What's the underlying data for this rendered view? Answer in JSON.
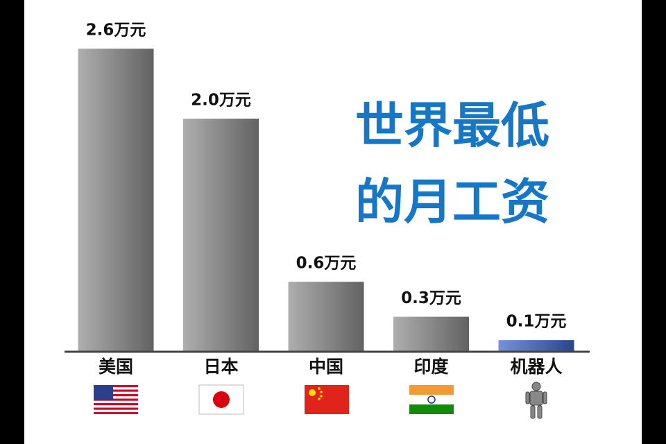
{
  "chart_data": {
    "type": "bar",
    "title": [
      "世界最低",
      "的月工资"
    ],
    "categories": [
      "美国",
      "日本",
      "中国",
      "印度",
      "机器人"
    ],
    "values": [
      2.6,
      2.0,
      0.6,
      0.3,
      0.1
    ],
    "value_labels": [
      "2.6万元",
      "2.0万元",
      "0.6万元",
      "0.3万元",
      "0.1万元"
    ],
    "colors": [
      "#8c8c8c",
      "#8c8c8c",
      "#8c8c8c",
      "#8c8c8c",
      "#3c64c6"
    ]
  }
}
